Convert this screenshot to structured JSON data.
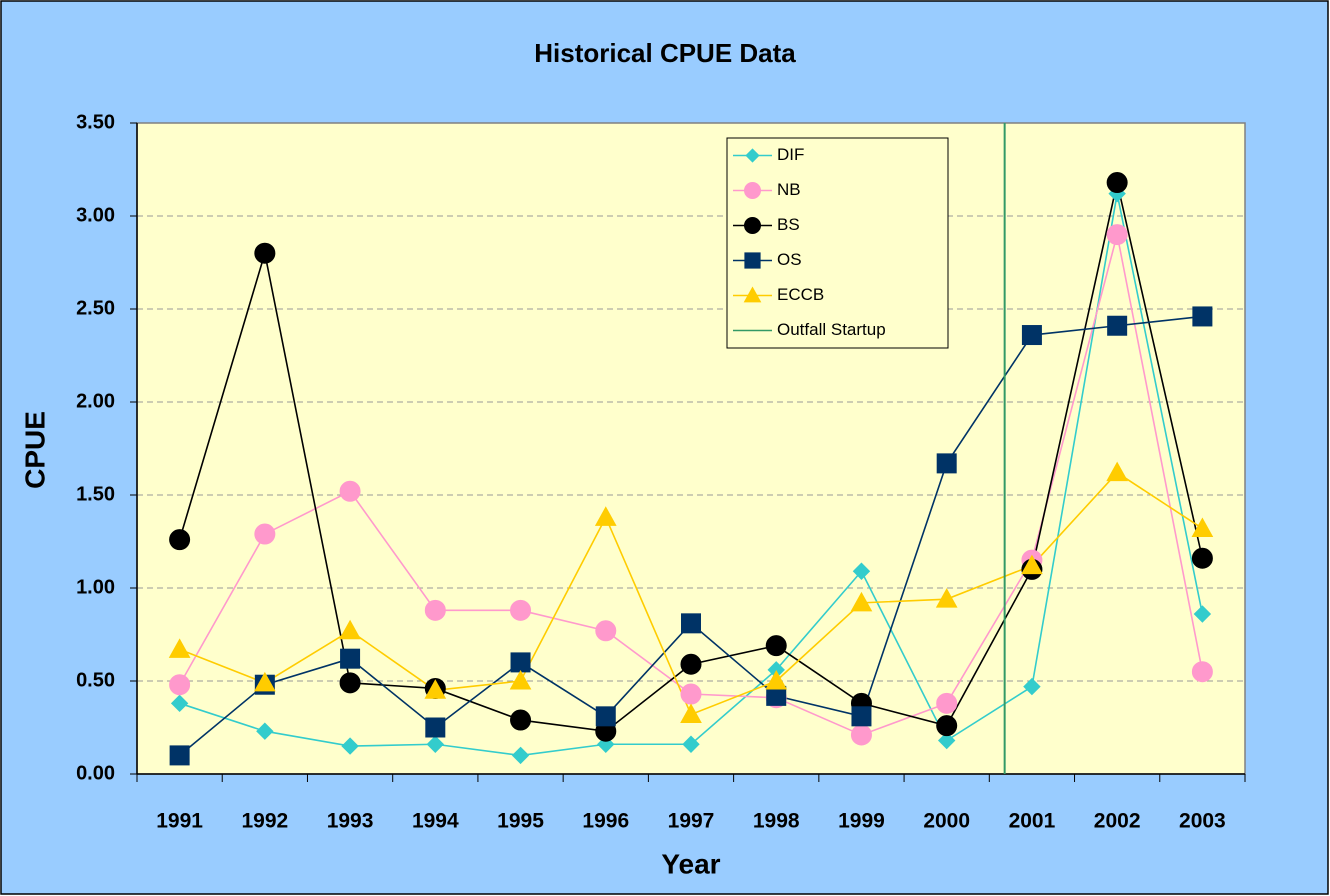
{
  "chart_data": {
    "type": "line",
    "title": "Historical CPUE Data",
    "x_label": "Year",
    "y_label": "CPUE",
    "x": [
      1991,
      1992,
      1993,
      1994,
      1995,
      1996,
      1997,
      1998,
      1999,
      2000,
      2001,
      2002,
      2003
    ],
    "xlim": [
      1990.5,
      2003.5
    ],
    "ylim": [
      0,
      3.5
    ],
    "yticks": [
      {
        "value": 0,
        "label": "0.00"
      },
      {
        "value": 0.5,
        "label": "0.50"
      },
      {
        "value": 1,
        "label": "1.00"
      },
      {
        "value": 1.5,
        "label": "1.50"
      },
      {
        "value": 2,
        "label": "2.00"
      },
      {
        "value": 2.5,
        "label": "2.50"
      },
      {
        "value": 3,
        "label": "3.00"
      },
      {
        "value": 3.5,
        "label": "3.50"
      }
    ],
    "grid": true,
    "legend": "upper right",
    "series": [
      {
        "name": "DIF",
        "color": "#33cccc",
        "marker": "diamond",
        "values": [
          0.38,
          0.23,
          0.15,
          0.16,
          0.1,
          0.16,
          0.16,
          0.56,
          1.09,
          0.18,
          0.47,
          3.12,
          0.86
        ]
      },
      {
        "name": "NB",
        "color": "#ff99cc",
        "marker": "circle",
        "values": [
          0.48,
          1.29,
          1.52,
          0.88,
          0.88,
          0.77,
          0.43,
          0.41,
          0.21,
          0.38,
          1.15,
          2.9,
          0.55
        ]
      },
      {
        "name": "BS",
        "color": "#000000",
        "marker": "circle",
        "values": [
          1.26,
          2.8,
          0.49,
          0.46,
          0.29,
          0.23,
          0.59,
          0.69,
          0.38,
          0.26,
          1.1,
          3.18,
          1.16
        ]
      },
      {
        "name": "OS",
        "color": "#003366",
        "marker": "square",
        "values": [
          0.1,
          0.48,
          0.62,
          0.25,
          0.6,
          0.31,
          0.81,
          0.42,
          0.31,
          1.67,
          2.36,
          2.41,
          2.46
        ]
      },
      {
        "name": "ECCB",
        "color": "#ffcc00",
        "marker": "triangle",
        "values": [
          0.67,
          0.49,
          0.77,
          0.45,
          0.5,
          1.38,
          0.32,
          0.5,
          0.92,
          0.94,
          1.12,
          1.62,
          1.32
        ]
      },
      {
        "name": "Outfall Startup",
        "color": "#339966",
        "marker": "vline",
        "x": 2000.68
      }
    ]
  }
}
